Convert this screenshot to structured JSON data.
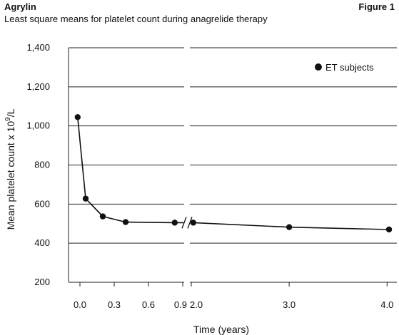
{
  "header": {
    "drug_name": "Agrylin",
    "figure_label": "Figure 1",
    "subtitle": "Least square means for platelet count during anagrelide therapy"
  },
  "chart_data": {
    "type": "line",
    "title": "Least square means for platelet count during anagrelide therapy",
    "xlabel": "Time (years)",
    "ylabel_main": "Mean platelet count x 10",
    "ylabel_sup": "9",
    "ylabel_tail": "/L",
    "ylim": [
      200,
      1400
    ],
    "y_ticks": [
      200,
      400,
      600,
      800,
      1000,
      1200,
      1400
    ],
    "y_tick_labels": [
      "200",
      "400",
      "600",
      "800",
      "1,000",
      "1,200",
      "1,400"
    ],
    "x_axis_broken": true,
    "x_segments": [
      {
        "range": [
          -0.1,
          0.9
        ],
        "ticks": [
          0.0,
          0.3,
          0.6,
          0.9
        ],
        "tick_labels": [
          "0.0",
          "0.3",
          "0.6",
          "0.9"
        ]
      },
      {
        "range": [
          2.0,
          4.1
        ],
        "ticks": [
          2.0,
          3.0,
          4.0
        ],
        "tick_labels": [
          "2.0",
          "3.0",
          "4.0"
        ]
      }
    ],
    "grid": "horizontal",
    "legend_position": "top-right",
    "series": [
      {
        "name": "ET subjects",
        "color": "#111111",
        "marker": "filled-circle",
        "points": [
          {
            "x": -0.02,
            "y": 1045
          },
          {
            "x": 0.05,
            "y": 628
          },
          {
            "x": 0.2,
            "y": 537
          },
          {
            "x": 0.4,
            "y": 508
          },
          {
            "x": 0.83,
            "y": 505
          },
          {
            "x": 2.02,
            "y": 505
          },
          {
            "x": 3.0,
            "y": 482
          },
          {
            "x": 4.02,
            "y": 470
          }
        ]
      }
    ]
  }
}
